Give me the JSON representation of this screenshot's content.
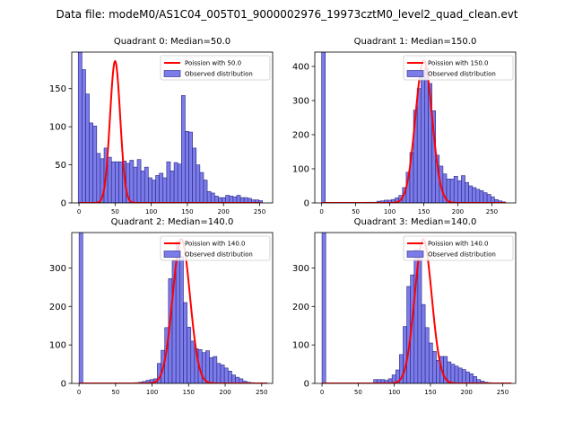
{
  "figure_title": "Data file: modeM0/AS1C04_005T01_9000002976_19973cztM0_level2_quad_clean.evt",
  "chart_data": [
    {
      "type": "bar",
      "title": "Quadrant 0: Median=50.0",
      "xlim": [
        -10,
        268
      ],
      "ylim": [
        0,
        198
      ],
      "xticks": [
        0,
        50,
        100,
        150,
        200,
        250
      ],
      "yticks": [
        0,
        50,
        100,
        150
      ],
      "bin_start": -1,
      "bin_width": 5.1,
      "counts": [
        198,
        175,
        143,
        105,
        101,
        65,
        58,
        72,
        60,
        54,
        54,
        54,
        55,
        52,
        56,
        47,
        57,
        42,
        47,
        33,
        30,
        36,
        39,
        33,
        54,
        42,
        53,
        51,
        141,
        94,
        93,
        72,
        50,
        40,
        30,
        15,
        13,
        9,
        7,
        7,
        10,
        9,
        8,
        10,
        7,
        7,
        6,
        4,
        4,
        3
      ],
      "fit_mean": 50.0,
      "fit_peak": 186,
      "fit_range": [
        0,
        250
      ],
      "legend": [
        {
          "label": "Poission with 50.0",
          "kind": "line",
          "color": "#ff0000"
        },
        {
          "label": "Observed distribution",
          "kind": "bar",
          "color": "#7b7bea"
        }
      ],
      "legend_position": "top-right"
    },
    {
      "type": "bar",
      "title": "Quadrant 1: Median=150.0",
      "xlim": [
        -10,
        285
      ],
      "ylim": [
        0,
        442
      ],
      "xticks": [
        0,
        50,
        100,
        150,
        200,
        250
      ],
      "yticks": [
        0,
        100,
        200,
        300,
        400
      ],
      "bin_start": 0,
      "bin_width": 5.4,
      "counts": [
        442,
        0,
        0,
        0,
        0,
        0,
        0,
        0,
        0,
        0,
        0,
        0,
        2,
        2,
        2,
        5,
        6,
        8,
        8,
        10,
        15,
        22,
        45,
        90,
        148,
        272,
        335,
        370,
        395,
        350,
        270,
        140,
        108,
        85,
        70,
        70,
        78,
        65,
        80,
        60,
        50,
        45,
        40,
        36,
        30,
        25,
        18,
        10,
        6,
        3
      ],
      "fit_mean": 150.0,
      "fit_peak": 418,
      "fit_range": [
        0,
        270
      ],
      "legend": [
        {
          "label": "Poission with 150.0",
          "kind": "line",
          "color": "#ff0000"
        },
        {
          "label": "Observed distribution",
          "kind": "bar",
          "color": "#7b7bea"
        }
      ],
      "legend_position": "top-right"
    },
    {
      "type": "bar",
      "title": "Quadrant 2: Median=140.0",
      "xlim": [
        -10,
        265
      ],
      "ylim": [
        0,
        392
      ],
      "xticks": [
        0,
        50,
        100,
        150,
        200,
        250
      ],
      "yticks": [
        0,
        100,
        200,
        300
      ],
      "bin_start": 0,
      "bin_width": 5.1,
      "counts": [
        392,
        0,
        0,
        0,
        0,
        0,
        0,
        0,
        0,
        0,
        0,
        0,
        0,
        0,
        1,
        2,
        3,
        5,
        8,
        10,
        12,
        52,
        86,
        145,
        272,
        318,
        368,
        330,
        210,
        146,
        110,
        90,
        88,
        80,
        85,
        67,
        70,
        52,
        48,
        40,
        32,
        22,
        16,
        12,
        6,
        3,
        2,
        1,
        0,
        0
      ],
      "fit_mean": 140.0,
      "fit_peak": 375,
      "fit_range": [
        0,
        258
      ],
      "legend": [
        {
          "label": "Poission with 140.0",
          "kind": "line",
          "color": "#ff0000"
        },
        {
          "label": "Observed distribution",
          "kind": "bar",
          "color": "#7b7bea"
        }
      ],
      "legend_position": "top-right"
    },
    {
      "type": "bar",
      "title": "Quadrant 3: Median=140.0",
      "xlim": [
        -10,
        268
      ],
      "ylim": [
        0,
        392
      ],
      "xticks": [
        0,
        50,
        100,
        150,
        200,
        250
      ],
      "yticks": [
        0,
        100,
        200,
        300
      ],
      "bin_start": 0,
      "bin_width": 5.1,
      "counts": [
        392,
        0,
        0,
        0,
        0,
        0,
        0,
        0,
        0,
        0,
        0,
        0,
        0,
        0,
        10,
        10,
        10,
        8,
        12,
        22,
        35,
        75,
        148,
        252,
        282,
        348,
        336,
        205,
        145,
        105,
        83,
        60,
        70,
        70,
        56,
        50,
        45,
        40,
        36,
        30,
        25,
        18,
        10,
        6,
        3,
        2,
        1,
        0,
        0,
        0
      ],
      "fit_mean": 140.0,
      "fit_peak": 375,
      "fit_range": [
        0,
        262
      ],
      "legend": [
        {
          "label": "Poission with 140.0",
          "kind": "line",
          "color": "#ff0000"
        },
        {
          "label": "Observed distribution",
          "kind": "bar",
          "color": "#7b7bea"
        }
      ],
      "legend_position": "top-right"
    }
  ]
}
